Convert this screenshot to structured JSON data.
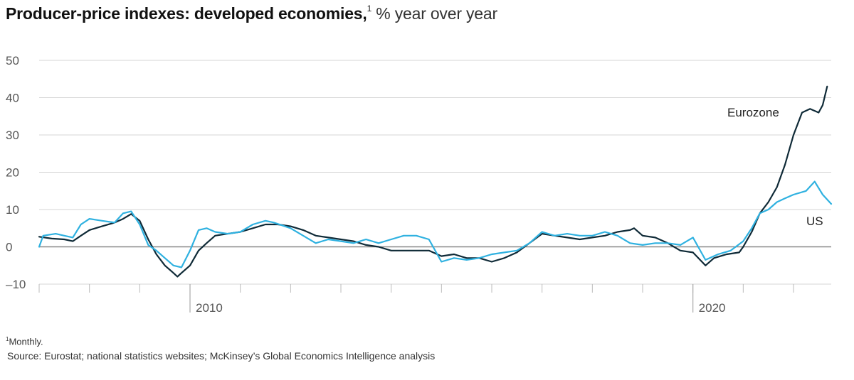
{
  "title": {
    "bold": "Producer-price indexes: developed economies,",
    "sup": "1",
    "unit": " % year over year"
  },
  "footnote": {
    "sup": "1",
    "text": "Monthly."
  },
  "source": "Source: Eurostat; national statistics websites; McKinsey’s Global Economics Intelligence analysis",
  "colors": {
    "eurozone": "#0f2a37",
    "us": "#2fb1e0",
    "grid": "#d5d5d5",
    "zero": "#888888"
  },
  "chart_data": {
    "type": "line",
    "title": "Producer-price indexes: developed economies, % year over year",
    "xlabel": "",
    "ylabel": "% year over year",
    "xlim": [
      2007.0,
      2022.75
    ],
    "ylim": [
      -10,
      50
    ],
    "yticks": [
      50,
      40,
      30,
      20,
      10,
      0,
      -10
    ],
    "ytick_labels": [
      "50",
      "40",
      "30",
      "20",
      "10",
      "0",
      "–10"
    ],
    "xtick_labels": [
      {
        "x": 2010,
        "label": "2010"
      },
      {
        "x": 2020,
        "label": "2020"
      }
    ],
    "minor_xticks": [
      2007,
      2008,
      2009,
      2010,
      2011,
      2012,
      2013,
      2014,
      2015,
      2016,
      2017,
      2018,
      2019,
      2020,
      2021,
      2022
    ],
    "grid": true,
    "series": [
      {
        "name": "Eurozone",
        "label_position": "end",
        "points": [
          [
            2007.0,
            2.7
          ],
          [
            2007.25,
            2.2
          ],
          [
            2007.5,
            2.0
          ],
          [
            2007.67,
            1.5
          ],
          [
            2007.83,
            3.0
          ],
          [
            2008.0,
            4.5
          ],
          [
            2008.25,
            5.5
          ],
          [
            2008.5,
            6.5
          ],
          [
            2008.67,
            7.5
          ],
          [
            2008.83,
            8.8
          ],
          [
            2009.0,
            7.0
          ],
          [
            2009.17,
            2.0
          ],
          [
            2009.33,
            -2.0
          ],
          [
            2009.5,
            -5.0
          ],
          [
            2009.67,
            -7.0
          ],
          [
            2009.75,
            -8.0
          ],
          [
            2009.83,
            -7.0
          ],
          [
            2010.0,
            -5.0
          ],
          [
            2010.17,
            -1.0
          ],
          [
            2010.33,
            1.0
          ],
          [
            2010.5,
            3.0
          ],
          [
            2010.75,
            3.5
          ],
          [
            2011.0,
            4.0
          ],
          [
            2011.25,
            5.0
          ],
          [
            2011.5,
            6.0
          ],
          [
            2011.75,
            6.0
          ],
          [
            2012.0,
            5.5
          ],
          [
            2012.25,
            4.5
          ],
          [
            2012.5,
            3.0
          ],
          [
            2012.75,
            2.5
          ],
          [
            2013.0,
            2.0
          ],
          [
            2013.25,
            1.5
          ],
          [
            2013.5,
            0.5
          ],
          [
            2013.75,
            0.0
          ],
          [
            2014.0,
            -1.0
          ],
          [
            2014.25,
            -1.0
          ],
          [
            2014.5,
            -1.0
          ],
          [
            2014.75,
            -1.0
          ],
          [
            2015.0,
            -2.5
          ],
          [
            2015.25,
            -2.0
          ],
          [
            2015.5,
            -3.0
          ],
          [
            2015.75,
            -3.0
          ],
          [
            2016.0,
            -4.0
          ],
          [
            2016.25,
            -3.0
          ],
          [
            2016.5,
            -1.5
          ],
          [
            2016.75,
            1.0
          ],
          [
            2017.0,
            3.5
          ],
          [
            2017.25,
            3.0
          ],
          [
            2017.5,
            2.5
          ],
          [
            2017.75,
            2.0
          ],
          [
            2018.0,
            2.5
          ],
          [
            2018.25,
            3.0
          ],
          [
            2018.5,
            4.0
          ],
          [
            2018.75,
            4.5
          ],
          [
            2018.83,
            5.0
          ],
          [
            2019.0,
            3.0
          ],
          [
            2019.25,
            2.5
          ],
          [
            2019.5,
            1.0
          ],
          [
            2019.75,
            -1.0
          ],
          [
            2020.0,
            -1.5
          ],
          [
            2020.25,
            -5.0
          ],
          [
            2020.42,
            -3.0
          ],
          [
            2020.67,
            -2.0
          ],
          [
            2020.92,
            -1.5
          ],
          [
            2021.0,
            0.0
          ],
          [
            2021.17,
            4.0
          ],
          [
            2021.33,
            9.0
          ],
          [
            2021.5,
            12.0
          ],
          [
            2021.67,
            16.0
          ],
          [
            2021.83,
            22.0
          ],
          [
            2022.0,
            30.0
          ],
          [
            2022.17,
            36.0
          ],
          [
            2022.33,
            37.0
          ],
          [
            2022.5,
            36.0
          ],
          [
            2022.58,
            38.0
          ],
          [
            2022.67,
            43.0
          ]
        ]
      },
      {
        "name": "US",
        "label_position": "end",
        "points": [
          [
            2007.0,
            0.0
          ],
          [
            2007.08,
            3.0
          ],
          [
            2007.33,
            3.5
          ],
          [
            2007.5,
            3.0
          ],
          [
            2007.67,
            2.5
          ],
          [
            2007.83,
            6.0
          ],
          [
            2008.0,
            7.5
          ],
          [
            2008.25,
            7.0
          ],
          [
            2008.5,
            6.5
          ],
          [
            2008.67,
            9.0
          ],
          [
            2008.83,
            9.5
          ],
          [
            2009.0,
            6.0
          ],
          [
            2009.17,
            0.5
          ],
          [
            2009.33,
            -1.0
          ],
          [
            2009.5,
            -3.0
          ],
          [
            2009.67,
            -5.0
          ],
          [
            2009.83,
            -5.5
          ],
          [
            2010.0,
            -1.0
          ],
          [
            2010.17,
            4.5
          ],
          [
            2010.33,
            5.0
          ],
          [
            2010.5,
            4.0
          ],
          [
            2010.75,
            3.5
          ],
          [
            2011.0,
            4.0
          ],
          [
            2011.25,
            6.0
          ],
          [
            2011.5,
            7.0
          ],
          [
            2011.67,
            6.5
          ],
          [
            2012.0,
            5.0
          ],
          [
            2012.25,
            3.0
          ],
          [
            2012.5,
            1.0
          ],
          [
            2012.75,
            2.0
          ],
          [
            2013.0,
            1.5
          ],
          [
            2013.25,
            1.0
          ],
          [
            2013.5,
            2.0
          ],
          [
            2013.75,
            1.0
          ],
          [
            2014.0,
            2.0
          ],
          [
            2014.25,
            3.0
          ],
          [
            2014.5,
            3.0
          ],
          [
            2014.75,
            2.0
          ],
          [
            2015.0,
            -4.0
          ],
          [
            2015.25,
            -3.0
          ],
          [
            2015.5,
            -3.5
          ],
          [
            2015.75,
            -3.0
          ],
          [
            2016.0,
            -2.0
          ],
          [
            2016.25,
            -1.5
          ],
          [
            2016.5,
            -1.0
          ],
          [
            2016.75,
            1.0
          ],
          [
            2017.0,
            4.0
          ],
          [
            2017.25,
            3.0
          ],
          [
            2017.5,
            3.5
          ],
          [
            2017.75,
            3.0
          ],
          [
            2018.0,
            3.0
          ],
          [
            2018.25,
            4.0
          ],
          [
            2018.5,
            3.0
          ],
          [
            2018.75,
            1.0
          ],
          [
            2019.0,
            0.5
          ],
          [
            2019.25,
            1.0
          ],
          [
            2019.5,
            1.0
          ],
          [
            2019.75,
            0.5
          ],
          [
            2020.0,
            2.5
          ],
          [
            2020.25,
            -3.5
          ],
          [
            2020.5,
            -2.0
          ],
          [
            2020.75,
            -1.0
          ],
          [
            2021.0,
            1.5
          ],
          [
            2021.17,
            5.0
          ],
          [
            2021.33,
            9.0
          ],
          [
            2021.5,
            10.0
          ],
          [
            2021.67,
            12.0
          ],
          [
            2021.83,
            13.0
          ],
          [
            2022.0,
            14.0
          ],
          [
            2022.25,
            15.0
          ],
          [
            2022.42,
            17.5
          ],
          [
            2022.58,
            14.0
          ],
          [
            2022.75,
            11.5
          ]
        ]
      }
    ]
  }
}
